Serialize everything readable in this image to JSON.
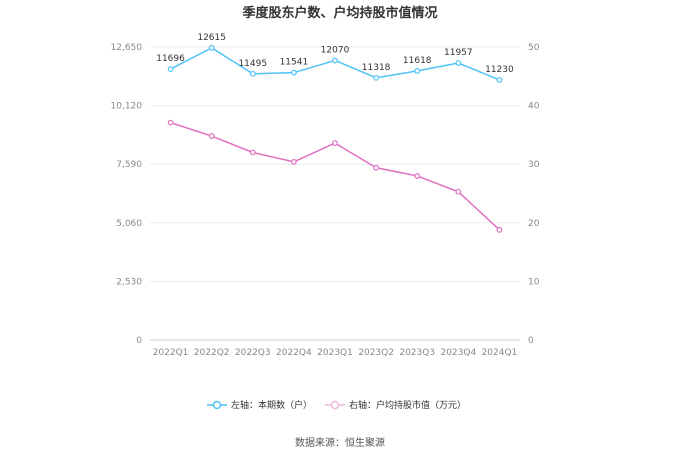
{
  "chart_data": {
    "type": "line",
    "title": "季度股东户数、户均持股市值情况",
    "categories": [
      "2022Q1",
      "2022Q2",
      "2022Q3",
      "2022Q4",
      "2023Q1",
      "2023Q2",
      "2023Q3",
      "2023Q4",
      "2024Q1"
    ],
    "left_axis": {
      "ylim": [
        0,
        12650
      ],
      "ticks": [
        "0",
        "2,530",
        "5,060",
        "7,590",
        "10,120",
        "12,650"
      ]
    },
    "right_axis": {
      "ylim": [
        0,
        50
      ],
      "ticks": [
        "0",
        "10",
        "20",
        "30",
        "40",
        "50"
      ]
    },
    "series": [
      {
        "name": "左轴：本期数（户）",
        "axis": "left",
        "color": "#4fc3f7",
        "values": [
          11696,
          12615,
          11495,
          11541,
          12070,
          11318,
          11618,
          11957,
          11230
        ],
        "labels": [
          "11696",
          "12615",
          "11495",
          "11541",
          "12070",
          "11318",
          "11618",
          "11957",
          "11230"
        ]
      },
      {
        "name": "右轴：户均持股市值（万元）",
        "axis": "right",
        "color": "#e06fbf",
        "values": [
          37.1,
          34.8,
          32.0,
          30.4,
          33.6,
          29.4,
          28.0,
          25.3,
          18.8
        ]
      }
    ],
    "grid": true,
    "legend": "bottom"
  },
  "source": "数据来源：恒生聚源"
}
